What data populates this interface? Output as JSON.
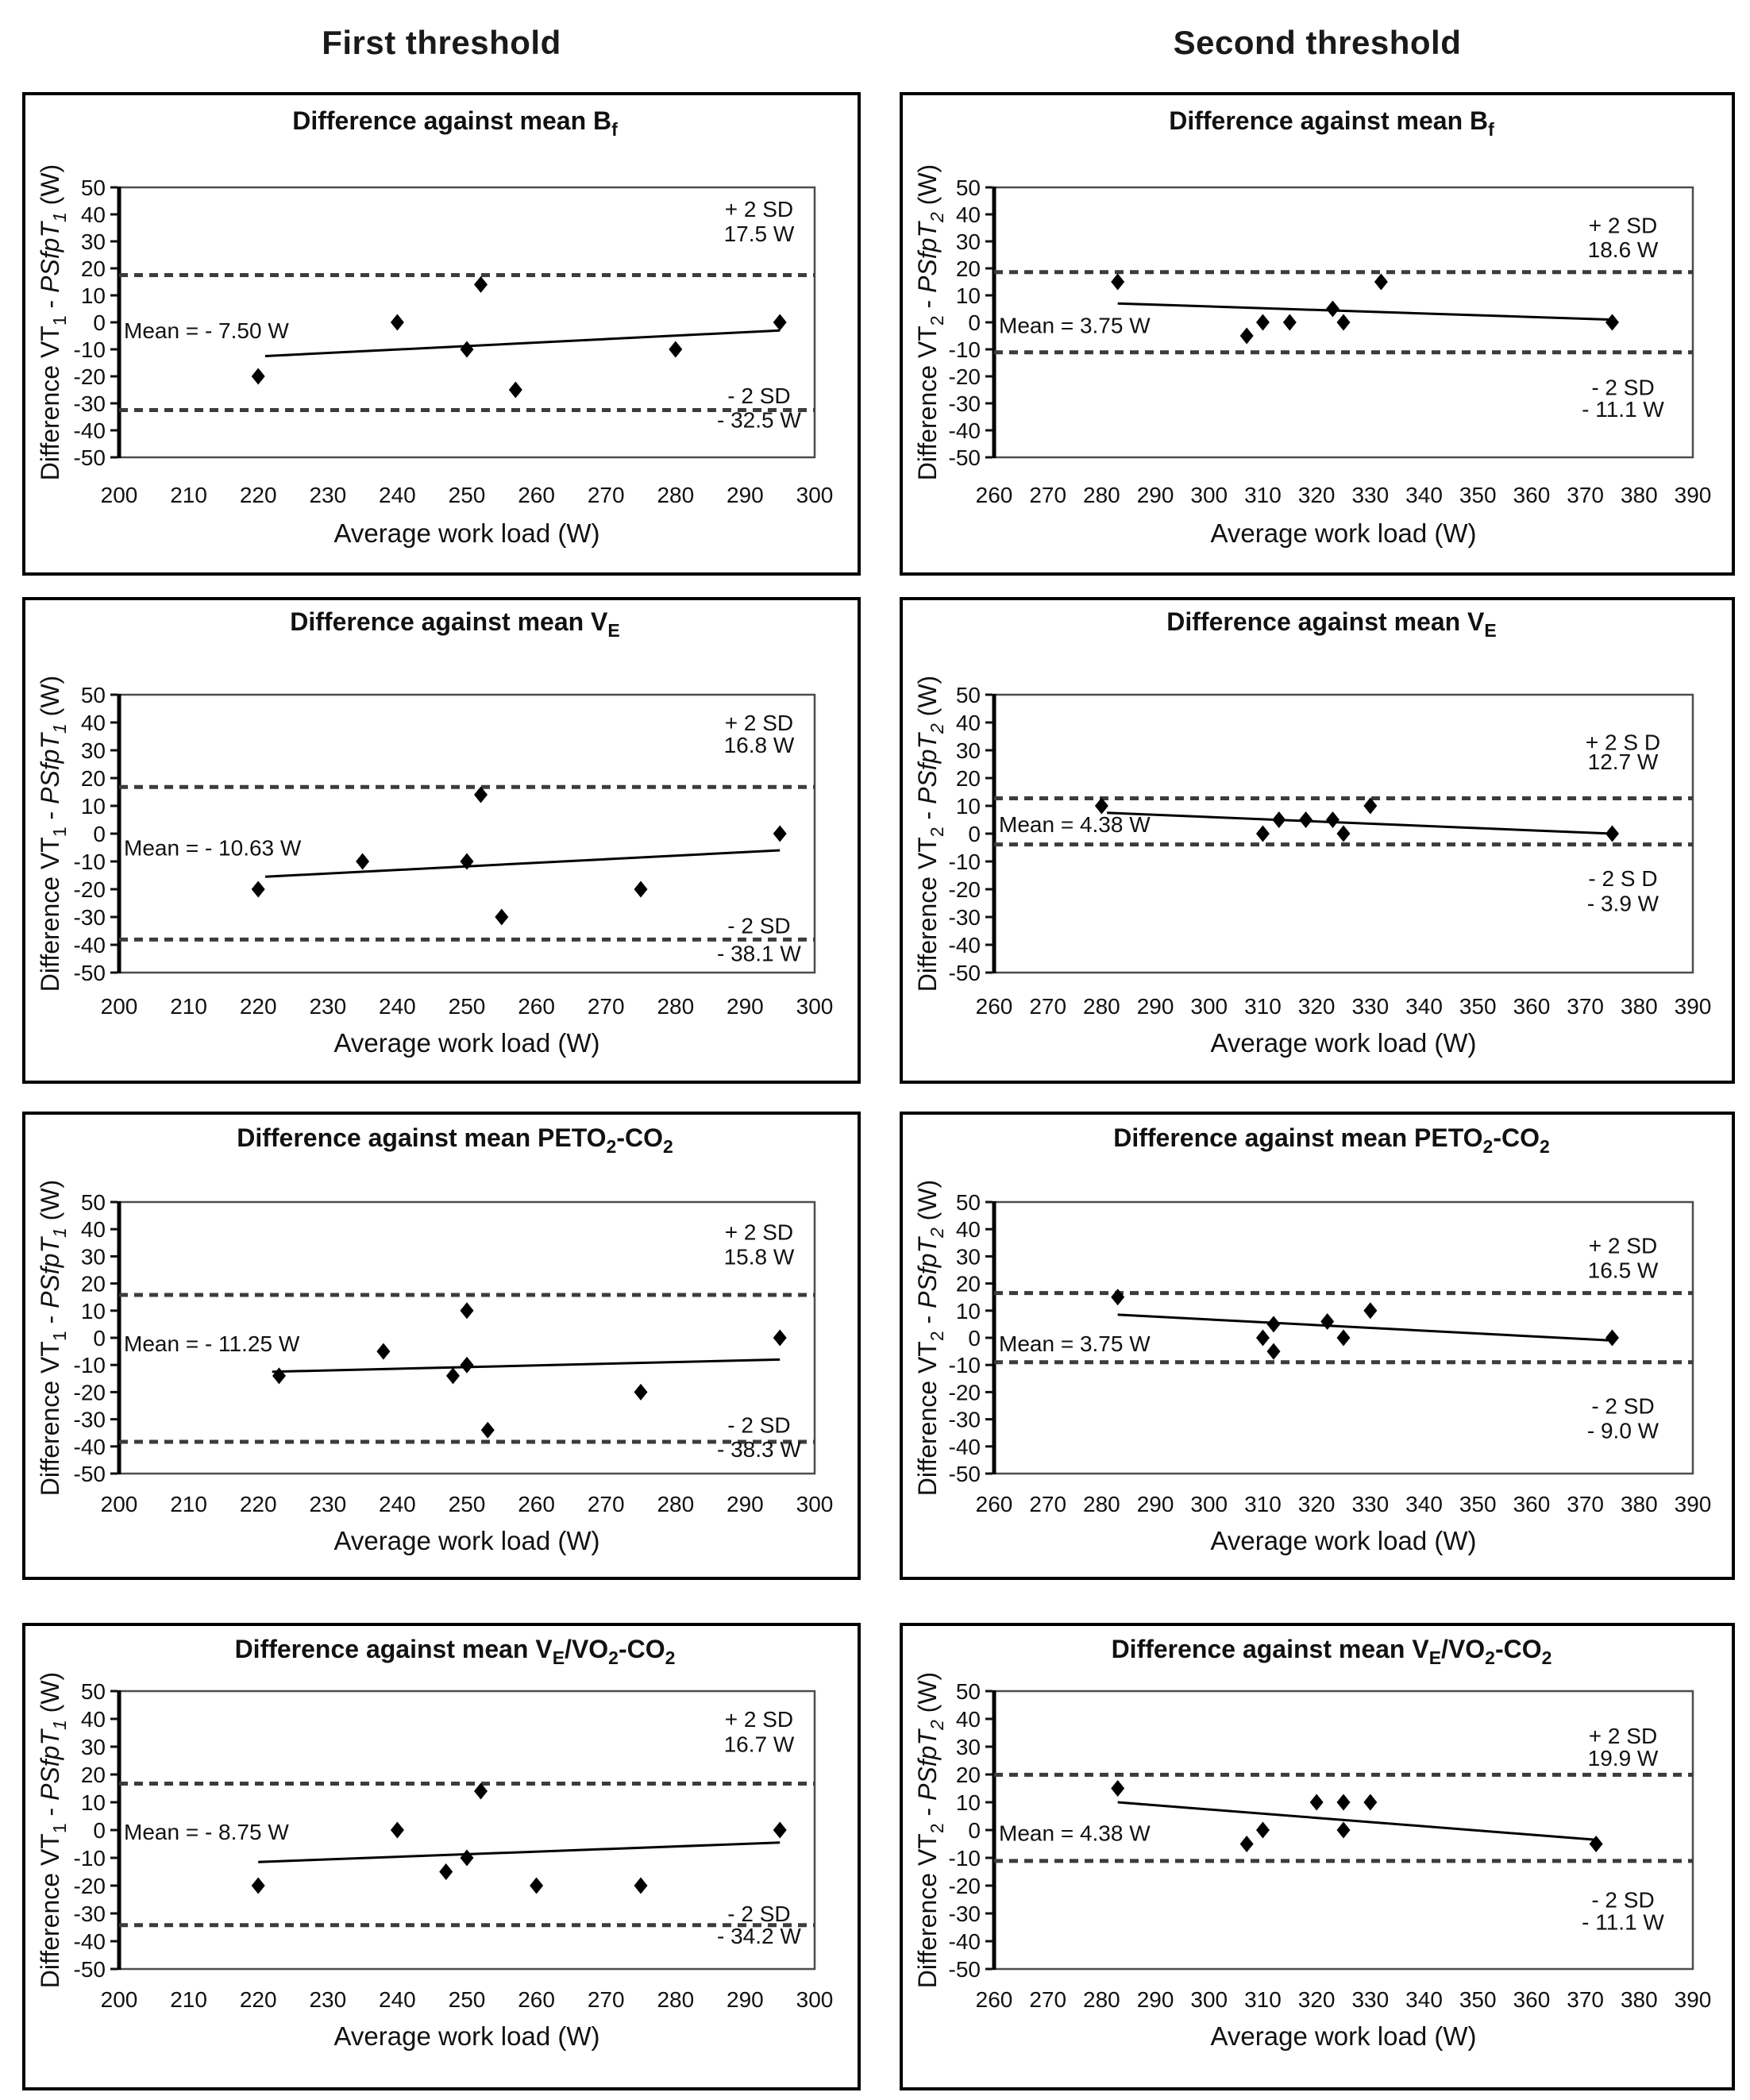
{
  "headers": {
    "first": "First threshold",
    "second": "Second threshold"
  },
  "chart_data": [
    {
      "id": "first-threshold-bf",
      "type": "scatter",
      "grid": {
        "row": 0,
        "col": 0
      },
      "title_segments": [
        [
          "Difference against mean B",
          "n"
        ],
        [
          "f",
          "s"
        ]
      ],
      "ylabel_segments": [
        [
          "Difference VT",
          "n"
        ],
        [
          "1",
          "s"
        ],
        [
          " - ",
          "n"
        ],
        [
          "PSfpT",
          "i"
        ],
        [
          "1",
          "is"
        ],
        [
          " (W)",
          "n"
        ]
      ],
      "xlabel": "Average work load (W)",
      "xlim": [
        200,
        300
      ],
      "xtick_step": 10,
      "ylim": [
        -50,
        50
      ],
      "ytick_step": 10,
      "grid_lines": false,
      "mean": {
        "value": -7.5,
        "label": "Mean = - 7.50 W",
        "label_y": -3
      },
      "upper_limit": {
        "value": 17.5,
        "lines": [
          "+ 2 SD",
          "17.5 W"
        ],
        "line_y": [
          42,
          33
        ]
      },
      "lower_limit": {
        "value": -32.5,
        "lines": [
          "- 2 SD",
          "- 32.5 W"
        ],
        "line_y": [
          -27,
          -36
        ]
      },
      "annot_x": 292,
      "trend_line": [
        [
          221,
          -12.5
        ],
        [
          295,
          -3
        ]
      ],
      "points": [
        [
          220,
          -20
        ],
        [
          240,
          0
        ],
        [
          250,
          -10
        ],
        [
          252,
          14
        ],
        [
          257,
          -25
        ],
        [
          280,
          -10
        ],
        [
          295,
          0
        ]
      ]
    },
    {
      "id": "second-threshold-bf",
      "type": "scatter",
      "grid": {
        "row": 0,
        "col": 1
      },
      "title_segments": [
        [
          "Difference against mean B",
          "n"
        ],
        [
          "f",
          "s"
        ]
      ],
      "ylabel_segments": [
        [
          "Difference VT",
          "n"
        ],
        [
          "2",
          "s"
        ],
        [
          " - ",
          "n"
        ],
        [
          "PSfpT",
          "i"
        ],
        [
          "2",
          "is"
        ],
        [
          " (W)",
          "n"
        ]
      ],
      "xlabel": "Average work load (W)",
      "xlim": [
        260,
        390
      ],
      "xtick_step": 10,
      "ylim": [
        -50,
        50
      ],
      "ytick_step": 10,
      "grid_lines": false,
      "mean": {
        "value": 3.75,
        "label": "Mean = 3.75 W",
        "label_y": -1
      },
      "upper_limit": {
        "value": 18.6,
        "lines": [
          "+ 2 SD",
          "18.6 W"
        ],
        "line_y": [
          36,
          27
        ]
      },
      "lower_limit": {
        "value": -11.1,
        "lines": [
          "- 2 SD",
          "- 11.1 W"
        ],
        "line_y": [
          -24,
          -32
        ]
      },
      "annot_x": 377,
      "trend_line": [
        [
          283,
          7
        ],
        [
          375,
          1
        ]
      ],
      "points": [
        [
          283,
          15
        ],
        [
          307,
          -5
        ],
        [
          310,
          0
        ],
        [
          315,
          0
        ],
        [
          323,
          5
        ],
        [
          325,
          0
        ],
        [
          332,
          15
        ],
        [
          375,
          0
        ]
      ]
    },
    {
      "id": "first-threshold-ve",
      "type": "scatter",
      "grid": {
        "row": 1,
        "col": 0
      },
      "title_segments": [
        [
          "Difference against mean V",
          "n"
        ],
        [
          "E",
          "s"
        ]
      ],
      "ylabel_segments": [
        [
          "Difference VT",
          "n"
        ],
        [
          "1",
          "s"
        ],
        [
          " - ",
          "n"
        ],
        [
          "PSfpT",
          "i"
        ],
        [
          "1",
          "is"
        ],
        [
          " (W)",
          "n"
        ]
      ],
      "xlabel": "Average work load (W)",
      "xlim": [
        200,
        300
      ],
      "xtick_step": 10,
      "ylim": [
        -50,
        50
      ],
      "ytick_step": 10,
      "grid_lines": false,
      "mean": {
        "value": -10.63,
        "label": "Mean = - 10.63 W",
        "label_y": -5
      },
      "upper_limit": {
        "value": 16.8,
        "lines": [
          "+ 2 SD",
          "16.8 W"
        ],
        "line_y": [
          40,
          32
        ]
      },
      "lower_limit": {
        "value": -38.1,
        "lines": [
          "- 2 SD",
          "- 38.1 W"
        ],
        "line_y": [
          -33,
          -43
        ]
      },
      "annot_x": 292,
      "trend_line": [
        [
          221,
          -15.5
        ],
        [
          295,
          -6
        ]
      ],
      "points": [
        [
          220,
          -20
        ],
        [
          235,
          -10
        ],
        [
          250,
          -10
        ],
        [
          252,
          14
        ],
        [
          255,
          -30
        ],
        [
          275,
          -20
        ],
        [
          295,
          0
        ]
      ]
    },
    {
      "id": "second-threshold-ve",
      "type": "scatter",
      "grid": {
        "row": 1,
        "col": 1
      },
      "title_segments": [
        [
          "Difference against mean V",
          "n"
        ],
        [
          "E",
          "s"
        ]
      ],
      "ylabel_segments": [
        [
          "Difference VT",
          "n"
        ],
        [
          "2",
          "s"
        ],
        [
          " - ",
          "n"
        ],
        [
          "PSfpT",
          "i"
        ],
        [
          "2",
          "is"
        ],
        [
          " (W)",
          "n"
        ]
      ],
      "xlabel": "Average work load (W)",
      "xlim": [
        260,
        390
      ],
      "xtick_step": 10,
      "ylim": [
        -50,
        50
      ],
      "ytick_step": 10,
      "grid_lines": false,
      "mean": {
        "value": 4.38,
        "label": "Mean = 4.38 W",
        "label_y": 3.5
      },
      "upper_limit": {
        "value": 12.7,
        "lines": [
          "+ 2 S D",
          "12.7 W"
        ],
        "line_y": [
          33,
          26
        ]
      },
      "lower_limit": {
        "value": -3.9,
        "lines": [
          "- 2 S D",
          "- 3.9 W"
        ],
        "line_y": [
          -16,
          -25
        ]
      },
      "annot_x": 377,
      "trend_line": [
        [
          281,
          7.5
        ],
        [
          375,
          0
        ]
      ],
      "points": [
        [
          280,
          10
        ],
        [
          310,
          0
        ],
        [
          313,
          5
        ],
        [
          318,
          5
        ],
        [
          323,
          5
        ],
        [
          325,
          0
        ],
        [
          330,
          10
        ],
        [
          375,
          0
        ]
      ]
    },
    {
      "id": "first-threshold-peto2-co2",
      "type": "scatter",
      "grid": {
        "row": 2,
        "col": 0
      },
      "title_segments": [
        [
          "Difference against mean PETO",
          "n"
        ],
        [
          "2",
          "s"
        ],
        [
          "-CO",
          "n"
        ],
        [
          "2",
          "s"
        ]
      ],
      "ylabel_segments": [
        [
          "Difference VT",
          "n"
        ],
        [
          "1",
          "s"
        ],
        [
          " - ",
          "n"
        ],
        [
          "PSfpT",
          "i"
        ],
        [
          "1",
          "is"
        ],
        [
          " (W)",
          "n"
        ]
      ],
      "xlabel": "Average work load (W)",
      "xlim": [
        200,
        300
      ],
      "xtick_step": 10,
      "ylim": [
        -50,
        50
      ],
      "ytick_step": 10,
      "grid_lines": false,
      "mean": {
        "value": -11.25,
        "label": "Mean = - 11.25 W",
        "label_y": -2
      },
      "upper_limit": {
        "value": 15.8,
        "lines": [
          "+ 2 SD",
          "15.8 W"
        ],
        "line_y": [
          39,
          30
        ]
      },
      "lower_limit": {
        "value": -38.3,
        "lines": [
          "- 2 SD",
          "- 38.3 W"
        ],
        "line_y": [
          -32,
          -41
        ]
      },
      "annot_x": 292,
      "trend_line": [
        [
          222,
          -12.5
        ],
        [
          295,
          -8
        ]
      ],
      "points": [
        [
          223,
          -14
        ],
        [
          238,
          -5
        ],
        [
          248,
          -14
        ],
        [
          250,
          -10
        ],
        [
          250,
          10
        ],
        [
          253,
          -34
        ],
        [
          275,
          -20
        ],
        [
          295,
          0
        ]
      ]
    },
    {
      "id": "second-threshold-peto2-co2",
      "type": "scatter",
      "grid": {
        "row": 2,
        "col": 1
      },
      "title_segments": [
        [
          "Difference against mean PETO",
          "n"
        ],
        [
          "2",
          "s"
        ],
        [
          "-CO",
          "n"
        ],
        [
          "2",
          "s"
        ]
      ],
      "ylabel_segments": [
        [
          "Difference VT",
          "n"
        ],
        [
          "2",
          "s"
        ],
        [
          " - ",
          "n"
        ],
        [
          "PSfpT",
          "i"
        ],
        [
          "2",
          "is"
        ],
        [
          " (W)",
          "n"
        ]
      ],
      "xlabel": "Average work load (W)",
      "xlim": [
        260,
        390
      ],
      "xtick_step": 10,
      "ylim": [
        -50,
        50
      ],
      "ytick_step": 10,
      "grid_lines": false,
      "mean": {
        "value": 3.75,
        "label": "Mean = 3.75 W",
        "label_y": -2
      },
      "upper_limit": {
        "value": 16.5,
        "lines": [
          "+ 2 SD",
          "16.5 W"
        ],
        "line_y": [
          34,
          25
        ]
      },
      "lower_limit": {
        "value": -9.0,
        "lines": [
          "- 2 SD",
          "- 9.0 W"
        ],
        "line_y": [
          -25,
          -34
        ]
      },
      "annot_x": 377,
      "trend_line": [
        [
          283,
          8.5
        ],
        [
          375,
          -1
        ]
      ],
      "points": [
        [
          283,
          15
        ],
        [
          310,
          0
        ],
        [
          312,
          -5
        ],
        [
          312,
          5
        ],
        [
          322,
          6
        ],
        [
          325,
          0
        ],
        [
          330,
          10
        ],
        [
          375,
          0
        ]
      ]
    },
    {
      "id": "first-threshold-ve-vo2-co2",
      "type": "scatter",
      "grid": {
        "row": 3,
        "col": 0
      },
      "title_segments": [
        [
          "Difference against mean V",
          "n"
        ],
        [
          "E",
          "s"
        ],
        [
          "/VO",
          "n"
        ],
        [
          "2",
          "s"
        ],
        [
          "-CO",
          "n"
        ],
        [
          "2",
          "s"
        ]
      ],
      "ylabel_segments": [
        [
          "Difference VT",
          "n"
        ],
        [
          "1",
          "s"
        ],
        [
          " - ",
          "n"
        ],
        [
          "PSfpT",
          "i"
        ],
        [
          "1",
          "is"
        ],
        [
          " (W)",
          "n"
        ]
      ],
      "xlabel": "Average work load (W)",
      "xlim": [
        200,
        300
      ],
      "xtick_step": 10,
      "ylim": [
        -50,
        50
      ],
      "ytick_step": 10,
      "grid_lines": false,
      "mean": {
        "value": -8.75,
        "label": "Mean = - 8.75 W",
        "label_y": -0.5
      },
      "upper_limit": {
        "value": 16.7,
        "lines": [
          "+ 2 SD",
          "16.7 W"
        ],
        "line_y": [
          40,
          31
        ]
      },
      "lower_limit": {
        "value": -34.2,
        "lines": [
          "- 2 SD",
          "- 34.2 W"
        ],
        "line_y": [
          -30,
          -38
        ]
      },
      "annot_x": 292,
      "trend_line": [
        [
          220,
          -11.5
        ],
        [
          295,
          -4.5
        ]
      ],
      "points": [
        [
          220,
          -20
        ],
        [
          240,
          0
        ],
        [
          247,
          -15
        ],
        [
          250,
          -10
        ],
        [
          252,
          14
        ],
        [
          260,
          -20
        ],
        [
          275,
          -20
        ],
        [
          295,
          0
        ]
      ]
    },
    {
      "id": "second-threshold-ve-vo2-co2",
      "type": "scatter",
      "grid": {
        "row": 3,
        "col": 1
      },
      "title_segments": [
        [
          "Difference against mean V",
          "n"
        ],
        [
          "E",
          "s"
        ],
        [
          "/VO",
          "n"
        ],
        [
          "2",
          "s"
        ],
        [
          "-CO",
          "n"
        ],
        [
          "2",
          "s"
        ]
      ],
      "ylabel_segments": [
        [
          "Difference VT",
          "n"
        ],
        [
          "2",
          "s"
        ],
        [
          " - ",
          "n"
        ],
        [
          "PSfpT",
          "i"
        ],
        [
          "2",
          "is"
        ],
        [
          " (W)",
          "n"
        ]
      ],
      "xlabel": "Average work load (W)",
      "xlim": [
        260,
        390
      ],
      "xtick_step": 10,
      "ylim": [
        -50,
        50
      ],
      "ytick_step": 10,
      "grid_lines": false,
      "mean": {
        "value": 4.38,
        "label": "Mean = 4.38 W",
        "label_y": -1
      },
      "upper_limit": {
        "value": 19.9,
        "lines": [
          "+ 2 SD",
          "19.9 W"
        ],
        "line_y": [
          34,
          26
        ]
      },
      "lower_limit": {
        "value": -11.1,
        "lines": [
          "- 2 SD",
          "- 11.1 W"
        ],
        "line_y": [
          -25,
          -33
        ]
      },
      "annot_x": 377,
      "trend_line": [
        [
          283,
          10
        ],
        [
          372,
          -3.5
        ]
      ],
      "points": [
        [
          283,
          15
        ],
        [
          307,
          -5
        ],
        [
          310,
          0
        ],
        [
          320,
          10
        ],
        [
          325,
          10
        ],
        [
          325,
          0
        ],
        [
          330,
          10
        ],
        [
          372,
          -5
        ]
      ]
    }
  ]
}
